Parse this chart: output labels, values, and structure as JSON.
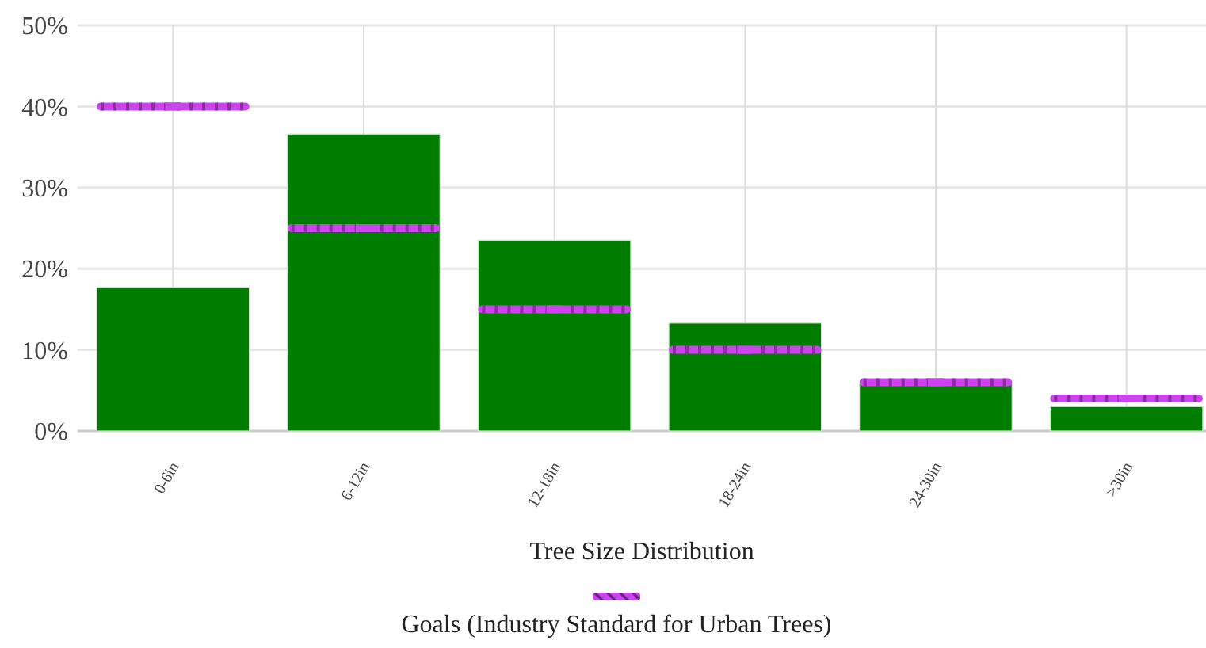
{
  "chart_data": {
    "type": "bar",
    "xlabel": "Tree Size Distribution",
    "categories": [
      "0-6in",
      "6-12in",
      "12-18in",
      "18-24in",
      "24-30in",
      ">30in"
    ],
    "series": [
      {
        "type": "bar",
        "color": "#007c00",
        "values": [
          17.7,
          36.6,
          23.5,
          13.3,
          5.8,
          3.0
        ]
      },
      {
        "type": "scatter",
        "name": "Goals (Industry Standard for Urban Trees)",
        "color": "#cc44ee",
        "values": [
          40,
          25,
          15,
          10,
          6,
          4
        ]
      }
    ],
    "ylim": [
      0,
      50
    ],
    "yticks": [
      {
        "value": 0,
        "label": "0%"
      },
      {
        "value": 10,
        "label": "10%"
      },
      {
        "value": 20,
        "label": "20%"
      },
      {
        "value": 30,
        "label": "30%"
      },
      {
        "value": 40,
        "label": "40%"
      },
      {
        "value": 50,
        "label": "50%"
      }
    ],
    "grid": true,
    "legend": "bottom"
  }
}
